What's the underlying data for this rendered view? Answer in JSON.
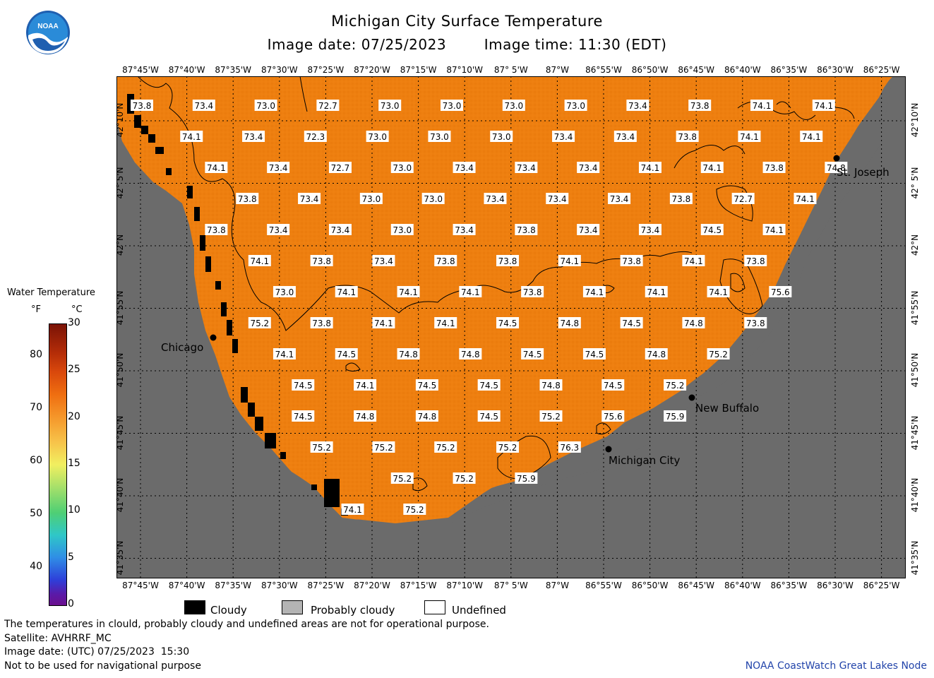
{
  "header": {
    "title": "Michigan City Surface Temperature",
    "date_label": "Image date: 07/25/2023",
    "time_label": "Image time: 11:30 (EDT)"
  },
  "logo": {
    "text": "NOAA"
  },
  "colors": {
    "water": "#ee7f10",
    "land": "#6b6b6b",
    "cloud": "#000000",
    "probably_cloudy": "#b4b4b4",
    "undefined": "#ffffff"
  },
  "longitude_ticks": [
    "87°45'W",
    "87°40'W",
    "87°35'W",
    "87°30'W",
    "87°25'W",
    "87°20'W",
    "87°15'W",
    "87°10'W",
    "87° 5'W",
    "87°W",
    "86°55'W",
    "86°50'W",
    "86°45'W",
    "86°40'W",
    "86°35'W",
    "86°30'W",
    "86°25'W"
  ],
  "latitude_ticks": [
    "42°10'N",
    "42° 5'N",
    "42°N",
    "41°55'N",
    "41°50'N",
    "41°45'N",
    "41°40'N",
    "41°35'N"
  ],
  "places": [
    {
      "name": "Chicago"
    },
    {
      "name": "St. Joseph"
    },
    {
      "name": "New Buffalo"
    },
    {
      "name": "Michigan City"
    }
  ],
  "temperature_grid": [
    [
      "73.8",
      "73.4",
      "73.0",
      "72.7",
      "73.0",
      "73.0",
      "73.0",
      "73.0",
      "73.4",
      "73.8",
      "74.1",
      "74.1"
    ],
    [
      "74.1",
      "73.4",
      "72.3",
      "73.0",
      "73.0",
      "73.0",
      "73.4",
      "73.4",
      "73.8",
      "74.1",
      "74.1"
    ],
    [
      "74.1",
      "73.4",
      "72.7",
      "73.0",
      "73.4",
      "73.4",
      "73.4",
      "74.1",
      "74.1",
      "73.8",
      "74.8"
    ],
    [
      "73.8",
      "73.4",
      "73.0",
      "73.0",
      "73.4",
      "73.4",
      "73.4",
      "73.8",
      "72.7",
      "74.1"
    ],
    [
      "73.8",
      "73.4",
      "73.4",
      "73.0",
      "73.4",
      "73.8",
      "73.4",
      "73.4",
      "74.5",
      "74.1"
    ],
    [
      "74.1",
      "73.8",
      "73.4",
      "73.8",
      "73.8",
      "74.1",
      "73.8",
      "74.1",
      "73.8"
    ],
    [
      "73.0",
      "74.1",
      "74.1",
      "74.1",
      "73.8",
      "74.1",
      "74.1",
      "74.1",
      "75.6"
    ],
    [
      "75.2",
      "73.8",
      "74.1",
      "74.1",
      "74.5",
      "74.8",
      "74.5",
      "74.8",
      "73.8"
    ],
    [
      "74.1",
      "74.5",
      "74.8",
      "74.8",
      "74.5",
      "74.5",
      "74.8",
      "75.2"
    ],
    [
      "74.5",
      "74.1",
      "74.5",
      "74.5",
      "74.8",
      "74.5",
      "75.2"
    ],
    [
      "74.5",
      "74.8",
      "74.8",
      "74.5",
      "75.2",
      "75.6",
      "75.9"
    ],
    [
      "75.2",
      "75.2",
      "75.2",
      "75.2",
      "76.3"
    ],
    [
      "75.2",
      "75.2",
      "75.9"
    ],
    [
      "74.1",
      "75.2"
    ]
  ],
  "legend": {
    "title": "Water Temperature",
    "unit_f": "°F",
    "unit_c": "°C",
    "f_ticks": [
      "80",
      "70",
      "60",
      "50",
      "40"
    ],
    "c_ticks": [
      "30",
      "25",
      "20",
      "15",
      "10",
      "5",
      "0"
    ],
    "f_range": [
      33,
      86
    ],
    "c_range": [
      0,
      30
    ]
  },
  "key": [
    {
      "label": "Cloudy",
      "color": "#000000"
    },
    {
      "label": "Probably cloudy",
      "color": "#b4b4b4"
    },
    {
      "label": "Undefined",
      "color": "#ffffff"
    }
  ],
  "notes": [
    "The temperatures in clould, probably cloudy and undefined areas are not for operational purpose.",
    "Satellite: AVHRRF_MC",
    "Image date: (UTC) 07/25/2023  15:30",
    "Not to be used for navigational purpose"
  ],
  "credit": "NOAA CoastWatch Great Lakes Node"
}
